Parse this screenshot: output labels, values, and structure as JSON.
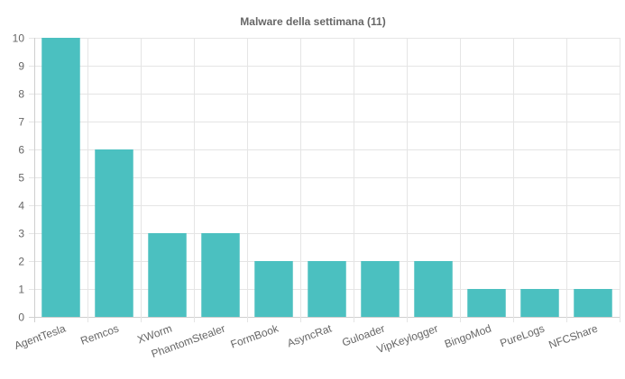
{
  "chart_data": {
    "type": "bar",
    "title": "Malware della settimana (11)",
    "xlabel": "",
    "ylabel": "",
    "categories": [
      "AgentTesla",
      "Remcos",
      "XWorm",
      "PhantomStealer",
      "FormBook",
      "AsyncRat",
      "Guloader",
      "VipKeylogger",
      "BingoMod",
      "PureLogs",
      "NFCShare"
    ],
    "values": [
      10,
      6,
      3,
      3,
      2,
      2,
      2,
      2,
      1,
      1,
      1
    ],
    "ylim": [
      0,
      10
    ],
    "yticks": [
      0,
      1,
      2,
      3,
      4,
      5,
      6,
      7,
      8,
      9,
      10
    ],
    "grid": true,
    "legend": "none",
    "bar_color": "#4bc0c0"
  }
}
